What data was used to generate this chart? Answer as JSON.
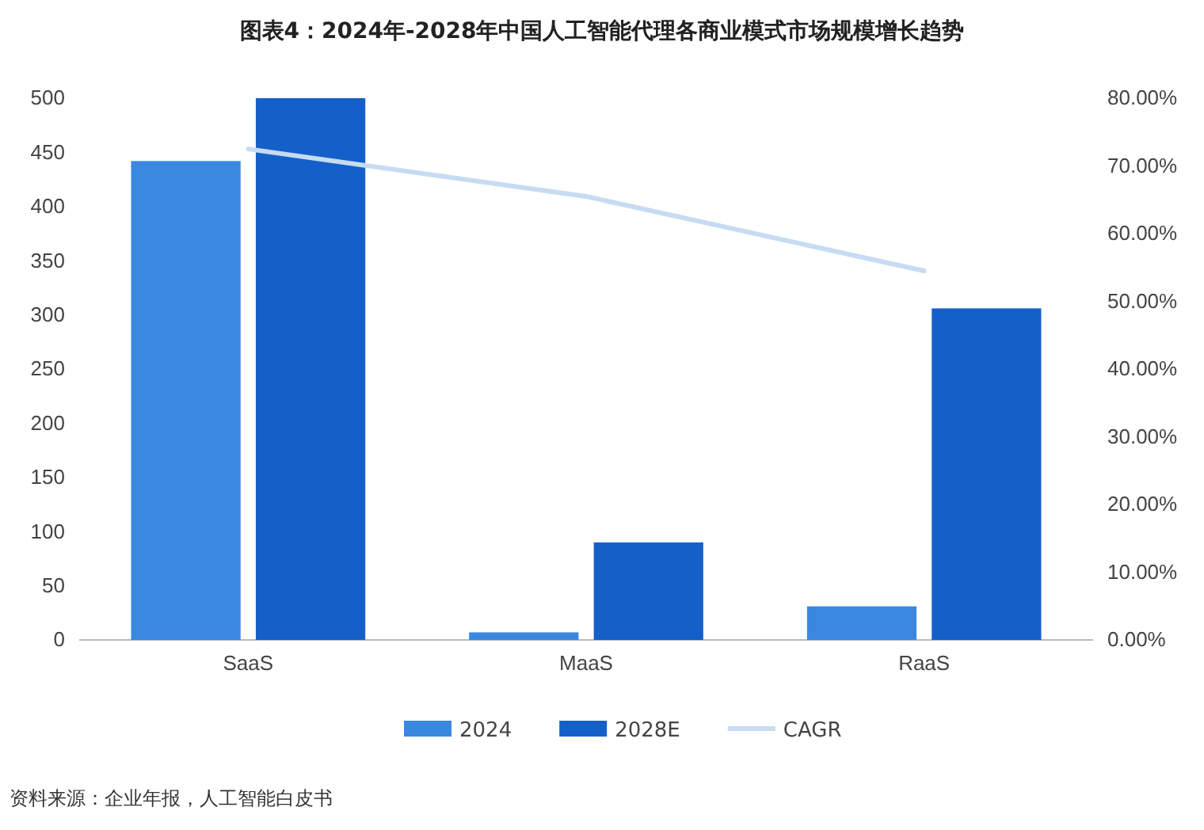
{
  "chart_data": {
    "type": "bar",
    "title": "图表4：2024年-2028年中国人工智能代理各商业模式市场规模增长趋势",
    "categories": [
      "SaaS",
      "MaaS",
      "RaaS"
    ],
    "series": [
      {
        "name": "2024",
        "color": "#3a87e0",
        "values": [
          442,
          7,
          31
        ]
      },
      {
        "name": "2028E",
        "color": "#1560c8",
        "values": [
          500,
          90,
          306
        ]
      },
      {
        "name": "CAGR",
        "type": "line",
        "axis": "y2",
        "color": "#c6dcf2",
        "values": [
          72.5,
          65.5,
          54.5
        ]
      }
    ],
    "ylim": [
      0,
      500
    ],
    "yticks": [
      0,
      50,
      100,
      150,
      200,
      250,
      300,
      350,
      400,
      450,
      500
    ],
    "y2lim": [
      0,
      80
    ],
    "y2ticks": [
      {
        "value": 0,
        "label": "0.00%"
      },
      {
        "value": 10,
        "label": "10.00%"
      },
      {
        "value": 20,
        "label": "20.00%"
      },
      {
        "value": 30,
        "label": "30.00%"
      },
      {
        "value": 40,
        "label": "40.00%"
      },
      {
        "value": 50,
        "label": "50.00%"
      },
      {
        "value": 60,
        "label": "60.00%"
      },
      {
        "value": 70,
        "label": "70.00%"
      },
      {
        "value": 80,
        "label": "80.00%"
      }
    ],
    "legend": "bottom",
    "marker": "none",
    "annotations": [
      "资料来源：企业年报，人工智能白皮书"
    ]
  }
}
